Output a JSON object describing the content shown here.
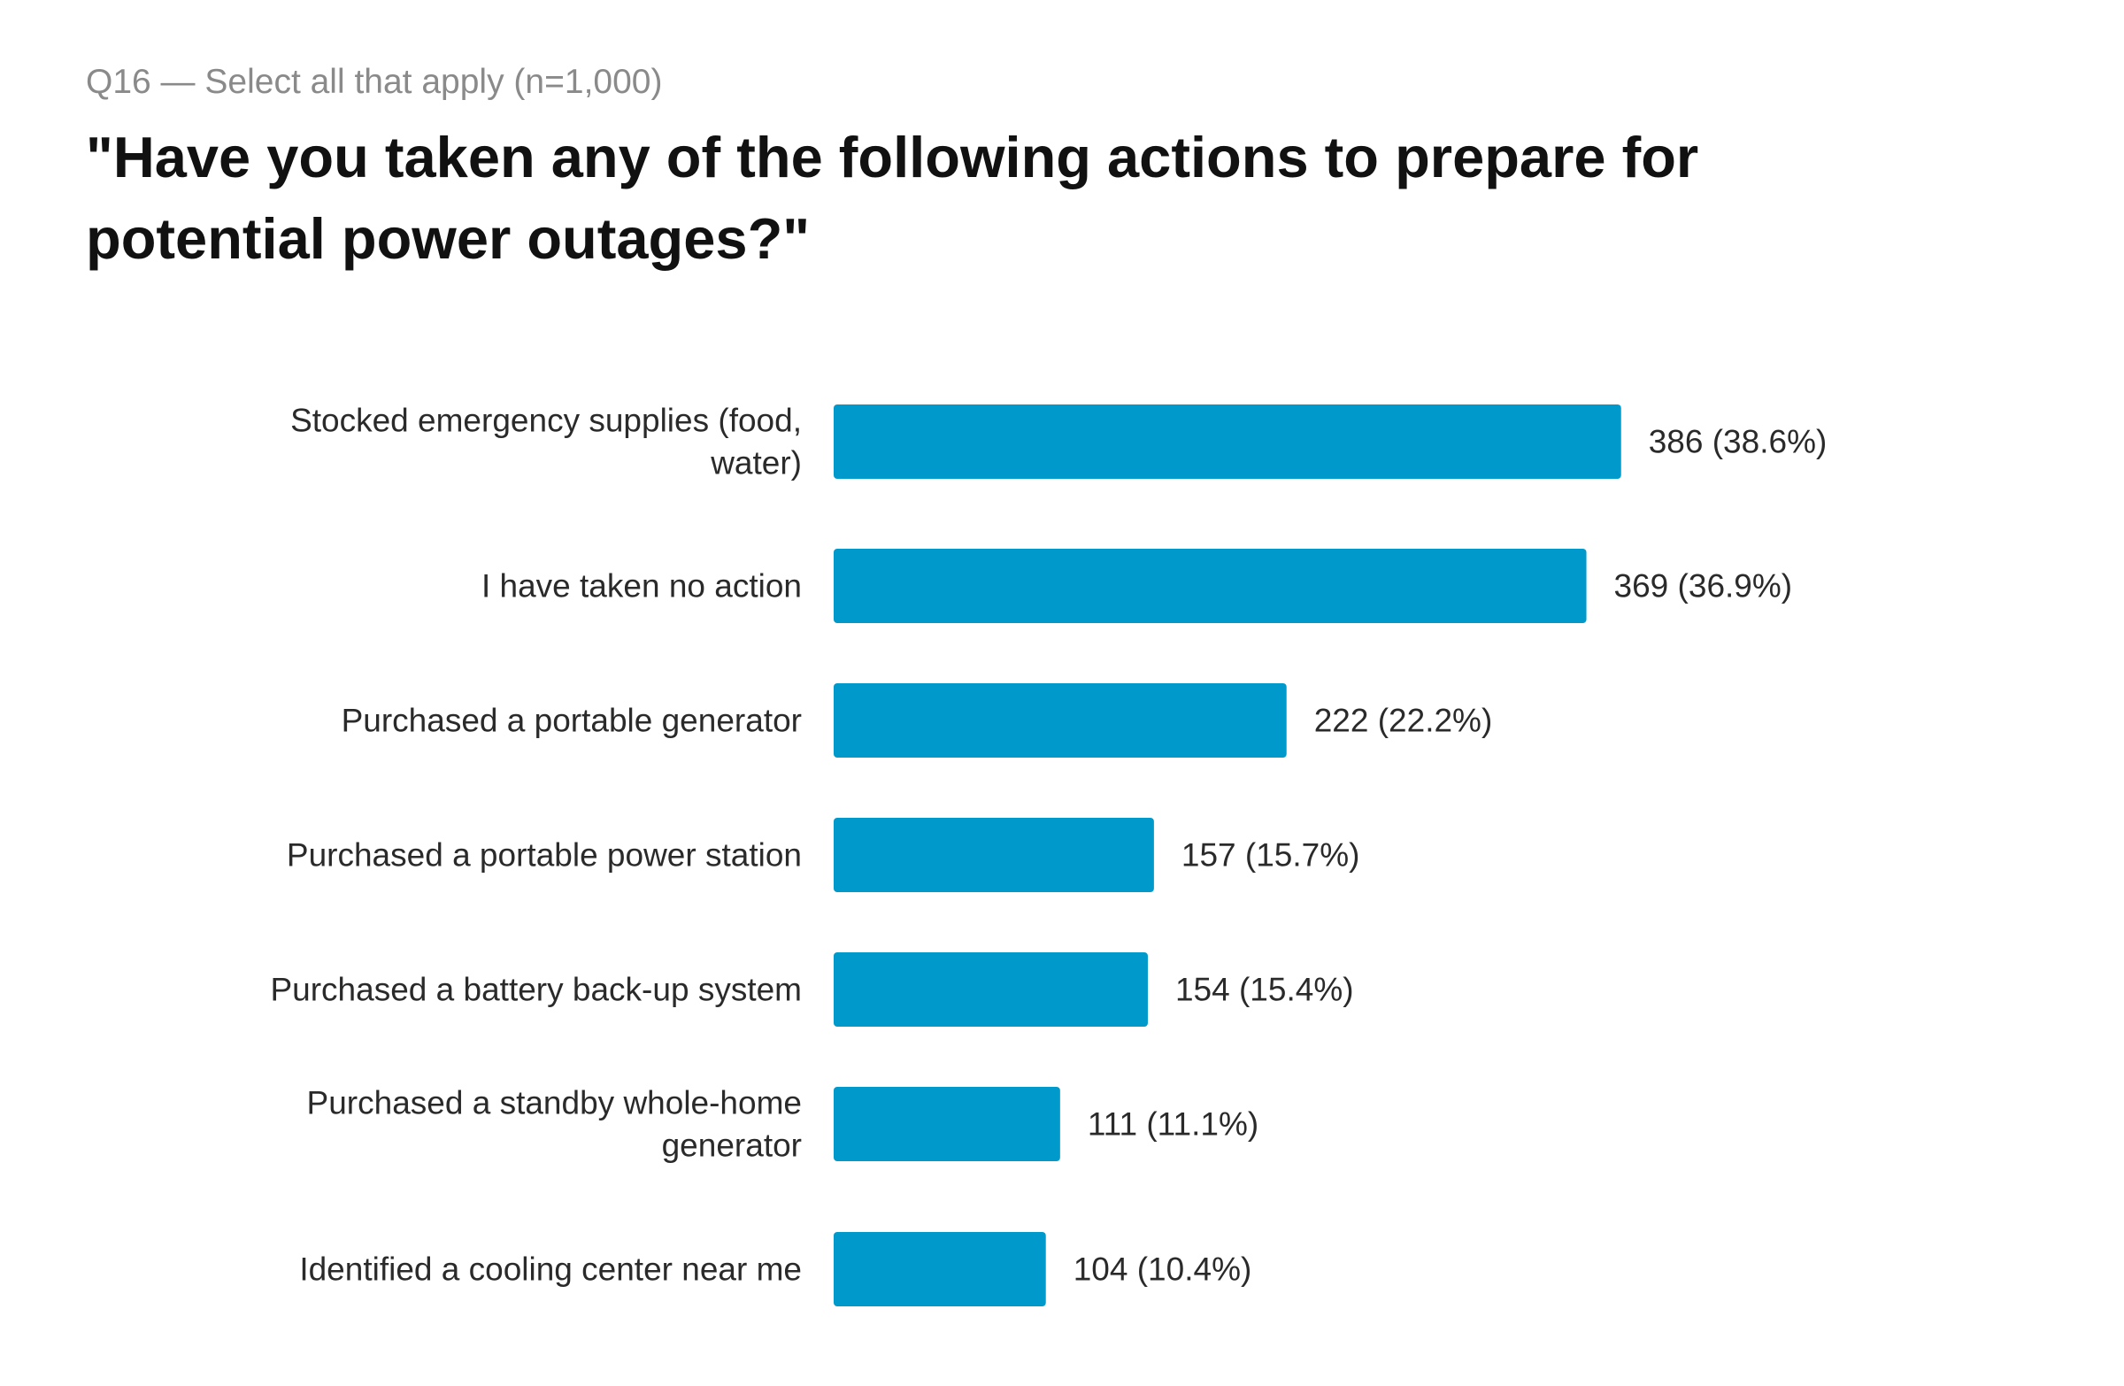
{
  "header": {
    "subtitle": "Q16 — Select all that apply (n=1,000)",
    "title": "\"Have you taken any of the following actions to prepare for potential power outages?\""
  },
  "colors": {
    "bar": "#0099cc"
  },
  "chart_data": {
    "type": "bar",
    "orientation": "horizontal",
    "categories": [
      [
        "Stocked emergency supplies (food,",
        "water)"
      ],
      [
        "I have taken no action"
      ],
      [
        "Purchased a portable generator"
      ],
      [
        "Purchased a portable power station"
      ],
      [
        "Purchased a battery back-up system"
      ],
      [
        "Purchased a standby whole-home",
        "generator"
      ],
      [
        "Identified a cooling center near me"
      ]
    ],
    "values": [
      386,
      369,
      222,
      157,
      154,
      111,
      104
    ],
    "value_labels": [
      "386 (38.6%)",
      "369 (36.9%)",
      "222 (22.2%)",
      "157 (15.7%)",
      "154 (15.4%)",
      "111 (11.1%)",
      "104 (10.4%)"
    ],
    "xlim": [
      0,
      1000
    ],
    "grid": false,
    "legend": "none"
  }
}
